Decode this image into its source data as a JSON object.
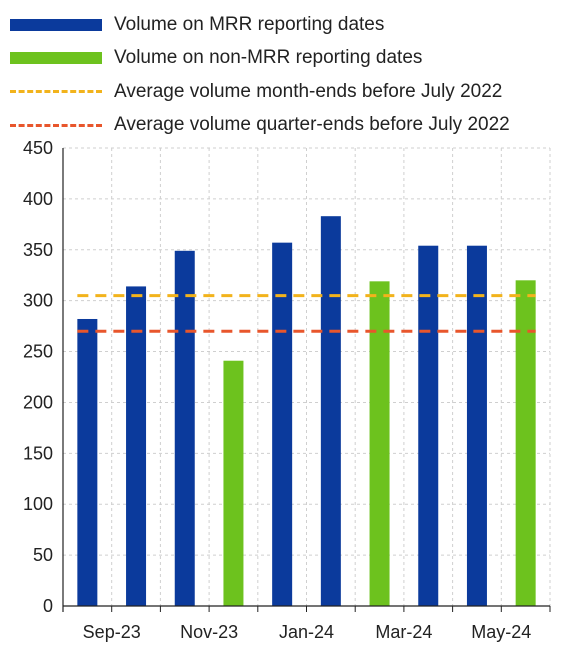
{
  "colors": {
    "mrr": "#0b3a9c",
    "non_mrr": "#6dc21e",
    "month_end_avg": "#f2b31c",
    "quarter_end_avg": "#e8562c",
    "grid": "#cfcfcf",
    "axis": "#222222"
  },
  "legend": [
    {
      "label": "Volume on MRR reporting dates",
      "style": "bar",
      "color_key": "mrr"
    },
    {
      "label": "Volume on non-MRR reporting dates",
      "style": "bar",
      "color_key": "non_mrr"
    },
    {
      "label": "Average volume month-ends before July 2022",
      "style": "dash",
      "color_key": "month_end_avg"
    },
    {
      "label": "Average volume quarter-ends before July 2022",
      "style": "dash",
      "color_key": "quarter_end_avg"
    }
  ],
  "chart_data": {
    "type": "bar",
    "categories": [
      "Sep-23",
      "Oct-23",
      "Nov-23",
      "Dec-23",
      "Jan-24",
      "Feb-24",
      "Mar-24",
      "Apr-24",
      "May-24",
      "Jun-24"
    ],
    "x_tick_labels": [
      "Sep-23",
      "Nov-23",
      "Jan-24",
      "Mar-24",
      "May-24"
    ],
    "series": [
      {
        "name": "Volume on MRR reporting dates",
        "values": [
          282,
          314,
          349,
          null,
          357,
          383,
          null,
          354,
          354,
          null
        ]
      },
      {
        "name": "Volume on non-MRR reporting dates",
        "values": [
          null,
          null,
          null,
          241,
          null,
          null,
          319,
          null,
          null,
          320
        ]
      }
    ],
    "reference_lines": [
      {
        "name": "Average volume month-ends before July 2022",
        "value": 305
      },
      {
        "name": "Average volume quarter-ends before July 2022",
        "value": 270
      }
    ],
    "ylim": [
      0,
      450
    ],
    "yticks": [
      0,
      50,
      100,
      150,
      200,
      250,
      300,
      350,
      400,
      450
    ],
    "grid": true,
    "legend_position": "top"
  }
}
